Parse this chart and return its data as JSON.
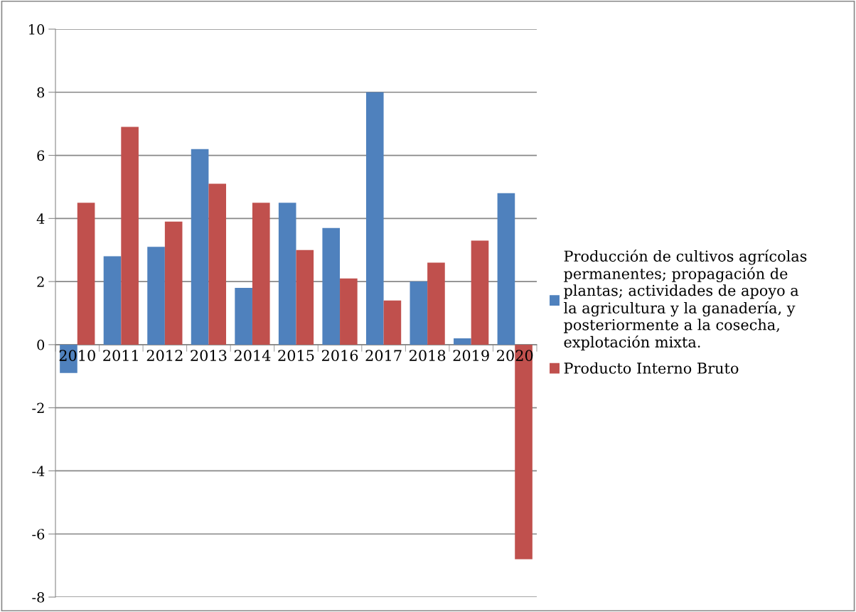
{
  "chart_data": {
    "type": "bar",
    "categories": [
      "2010",
      "2011",
      "2012",
      "2013",
      "2014",
      "2015",
      "2016",
      "2017",
      "2018",
      "2019",
      "2020"
    ],
    "series": [
      {
        "name": "Producción de cultivos agrícolas permanentes; propagación de plantas; actividades de apoyo a la agricultura y la ganadería, y posteriormente a la cosecha, explotación mixta.",
        "color": "#4f81bd",
        "values": [
          -0.9,
          2.8,
          3.1,
          6.2,
          1.8,
          4.5,
          3.7,
          8.0,
          2.0,
          0.2,
          4.8
        ]
      },
      {
        "name": "Producto Interno Bruto",
        "color": "#c0504d",
        "values": [
          4.5,
          6.9,
          3.9,
          5.1,
          4.5,
          3.0,
          2.1,
          1.4,
          2.6,
          3.3,
          -6.8
        ]
      }
    ],
    "ylim": [
      -8,
      10
    ],
    "yticks": [
      -8,
      -6,
      -4,
      -2,
      0,
      2,
      4,
      6,
      8,
      10
    ],
    "grid": "y",
    "legend": "right"
  }
}
